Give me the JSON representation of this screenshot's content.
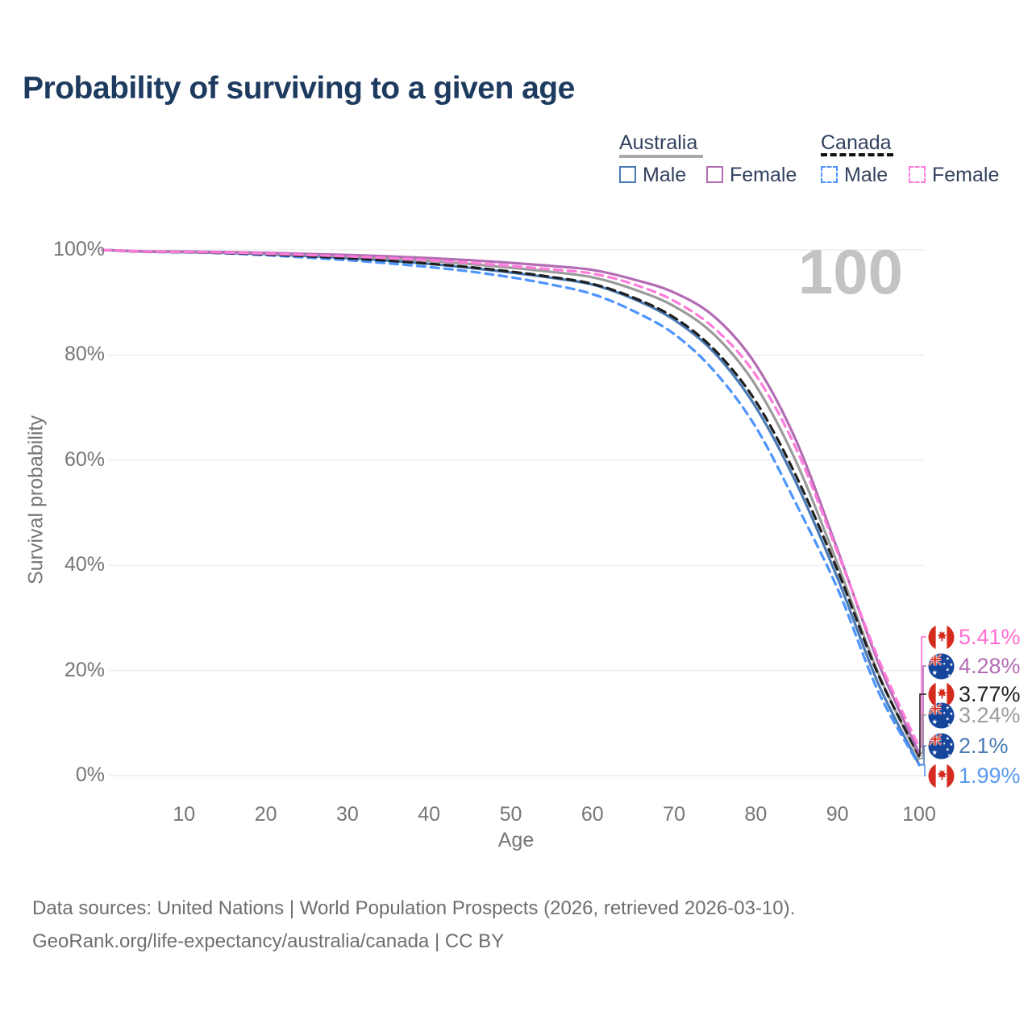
{
  "title": "Probability of surviving to a given age",
  "watermark": "100",
  "legend": {
    "australia": {
      "label": "Australia",
      "male_label": "Male",
      "female_label": "Female",
      "line_color": "#a8a8a8",
      "male_color": "#4a7ab5",
      "female_color": "#b36cb4",
      "style": "solid"
    },
    "canada": {
      "label": "Canada",
      "male_label": "Male",
      "female_label": "Female",
      "line_color": "#111111",
      "male_color": "#4d94ff",
      "female_color": "#ff7bdb",
      "style": "dashed"
    }
  },
  "yaxis": {
    "title": "Survival probability",
    "ticks": [
      {
        "label": "0%",
        "value": 0
      },
      {
        "label": "20%",
        "value": 20
      },
      {
        "label": "40%",
        "value": 40
      },
      {
        "label": "60%",
        "value": 60
      },
      {
        "label": "80%",
        "value": 80
      },
      {
        "label": "100%",
        "value": 100
      }
    ]
  },
  "xaxis": {
    "title": "Age",
    "ticks": [
      {
        "label": "10",
        "value": 10
      },
      {
        "label": "20",
        "value": 20
      },
      {
        "label": "30",
        "value": 30
      },
      {
        "label": "40",
        "value": 40
      },
      {
        "label": "50",
        "value": 50
      },
      {
        "label": "60",
        "value": 60
      },
      {
        "label": "70",
        "value": 70
      },
      {
        "label": "80",
        "value": 80
      },
      {
        "label": "90",
        "value": 90
      },
      {
        "label": "100",
        "value": 100
      }
    ]
  },
  "chart_data": {
    "type": "line",
    "title": "Probability of surviving to a given age",
    "xlabel": "Age",
    "ylabel": "Survival probability",
    "xlim": [
      0,
      100
    ],
    "ylim": [
      0,
      100
    ],
    "grid": "horizontal",
    "hovered_age": 100,
    "x": [
      0,
      5,
      10,
      15,
      20,
      25,
      30,
      35,
      40,
      45,
      50,
      55,
      60,
      65,
      70,
      75,
      80,
      85,
      90,
      95,
      100
    ],
    "series": [
      {
        "name": "Australia Male",
        "country": "Australia",
        "sex": "Male",
        "color": "#4a7ab5",
        "dash": "solid",
        "values": [
          100,
          99.7,
          99.6,
          99.45,
          99.2,
          98.85,
          98.45,
          97.95,
          97.35,
          96.6,
          95.7,
          94.7,
          93.4,
          90.7,
          86.7,
          80.3,
          70.1,
          55.5,
          37.6,
          17.5,
          2.1
        ]
      },
      {
        "name": "Canada Male",
        "country": "Canada",
        "sex": "Male",
        "color": "#4d94ff",
        "dash": "dashed",
        "values": [
          100,
          99.65,
          99.55,
          99.35,
          99.0,
          98.55,
          98.05,
          97.45,
          96.75,
          95.9,
          94.8,
          93.4,
          91.6,
          88.4,
          84.0,
          76.8,
          66.3,
          51.5,
          35.6,
          16.0,
          1.99
        ]
      },
      {
        "name": "Australia All",
        "country": "Australia",
        "sex": "All",
        "color": "#9b9b9b",
        "dash": "solid",
        "values": [
          100,
          99.72,
          99.6,
          99.52,
          99.32,
          99.05,
          98.75,
          98.38,
          97.9,
          97.32,
          96.62,
          95.82,
          94.8,
          92.55,
          89.3,
          83.75,
          74.2,
          59.5,
          40.3,
          19.5,
          3.24
        ]
      },
      {
        "name": "Canada All",
        "country": "Canada",
        "sex": "All",
        "color": "#1f1f1f",
        "dash": "dashed",
        "values": [
          100,
          99.68,
          99.58,
          99.42,
          99.15,
          98.8,
          98.42,
          97.95,
          97.4,
          96.72,
          95.88,
          94.85,
          93.55,
          90.95,
          87.15,
          80.9,
          71.2,
          56.8,
          39.1,
          19.2,
          3.77
        ]
      },
      {
        "name": "Australia Female",
        "country": "Australia",
        "sex": "Female",
        "color": "#b36cb4",
        "dash": "solid",
        "values": [
          100,
          99.75,
          99.7,
          99.6,
          99.45,
          99.25,
          99.05,
          98.8,
          98.45,
          98.05,
          97.55,
          96.95,
          96.2,
          94.4,
          91.9,
          87.2,
          78.2,
          63.5,
          43.0,
          21.5,
          4.28
        ]
      },
      {
        "name": "Canada Female",
        "country": "Canada",
        "sex": "Female",
        "color": "#ff7bdb",
        "dash": "dashed",
        "values": [
          100,
          99.7,
          99.62,
          99.5,
          99.3,
          99.05,
          98.78,
          98.45,
          98.05,
          97.55,
          96.95,
          96.3,
          95.5,
          93.5,
          90.3,
          85.0,
          76.2,
          62.0,
          42.5,
          22.3,
          5.41
        ]
      }
    ],
    "values_at_age_100": {
      "Canada Female": 5.41,
      "Australia Female": 4.28,
      "Canada All": 3.77,
      "Australia All": 3.24,
      "Australia Male": 2.1,
      "Canada Male": 1.99
    }
  },
  "end_labels": [
    {
      "series": "Canada Female",
      "flag": "canada",
      "label": "5.41%",
      "value": 5.41,
      "color": "#ff6ed2"
    },
    {
      "series": "Australia Female",
      "flag": "australia",
      "label": "4.28%",
      "value": 4.28,
      "color": "#b36cb4"
    },
    {
      "series": "Canada All",
      "flag": "canada",
      "label": "3.77%",
      "value": 3.77,
      "color": "#1f1f1f"
    },
    {
      "series": "Australia All",
      "flag": "australia",
      "label": "3.24%",
      "value": 3.24,
      "color": "#9b9b9b"
    },
    {
      "series": "Australia Male",
      "flag": "australia",
      "label": "2.1%",
      "value": 2.1,
      "color": "#4a7ab5"
    },
    {
      "series": "Canada Male",
      "flag": "canada",
      "label": "1.99%",
      "value": 1.99,
      "color": "#5b9bf0"
    }
  ],
  "footer": {
    "line1": "Data sources: United Nations | World Population Prospects (2026, retrieved 2026-03-10).",
    "line2": "GeoRank.org/life-expectancy/australia/canada | CC BY"
  }
}
